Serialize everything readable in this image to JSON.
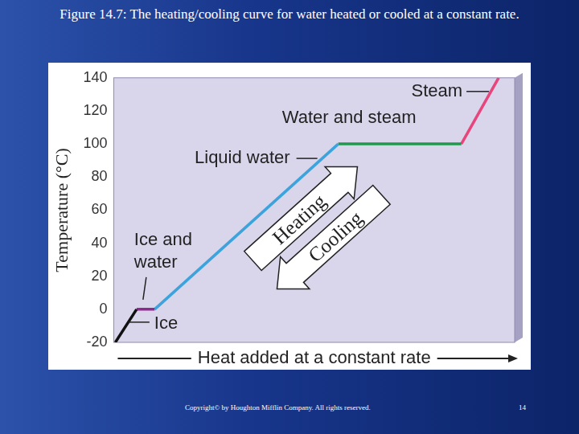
{
  "chart_data": {
    "type": "line",
    "title": "Figure 14.7: The heating/cooling curve for water heated or cooled at a constant rate.",
    "x_label": "Heat added at a constant rate",
    "y_label": "Temperature (°C)",
    "series": [
      {
        "name": "Ice",
        "color": "#111111",
        "x": [
          0.4,
          5.7
        ],
        "values": [
          -20,
          0
        ]
      },
      {
        "name": "Ice and water",
        "color": "#8e2c8e",
        "x": [
          5.7,
          10.2
        ],
        "values": [
          0,
          0
        ]
      },
      {
        "name": "Liquid water",
        "color": "#3ca3dc",
        "x": [
          10.2,
          56
        ],
        "values": [
          0,
          100
        ]
      },
      {
        "name": "Water and steam",
        "color": "#1f9a4c",
        "x": [
          56,
          86.7
        ],
        "values": [
          100,
          100
        ]
      },
      {
        "name": "Steam",
        "color": "#e8457c",
        "x": [
          86.7,
          96
        ],
        "values": [
          100,
          140
        ]
      }
    ],
    "annotations": [
      "Heating",
      "Cooling"
    ],
    "xlim": [
      0,
      100
    ],
    "ylim": [
      -20,
      140
    ],
    "yticks": [
      -20,
      0,
      20,
      40,
      60,
      80,
      100,
      120,
      140
    ],
    "grid": false,
    "legend": "none",
    "tick_labels": "y",
    "marker": "none",
    "line_style": "solid"
  },
  "footer": {
    "copyright": "Copyright© by Houghton Mifflin Company. All rights reserved.",
    "page": "14"
  }
}
